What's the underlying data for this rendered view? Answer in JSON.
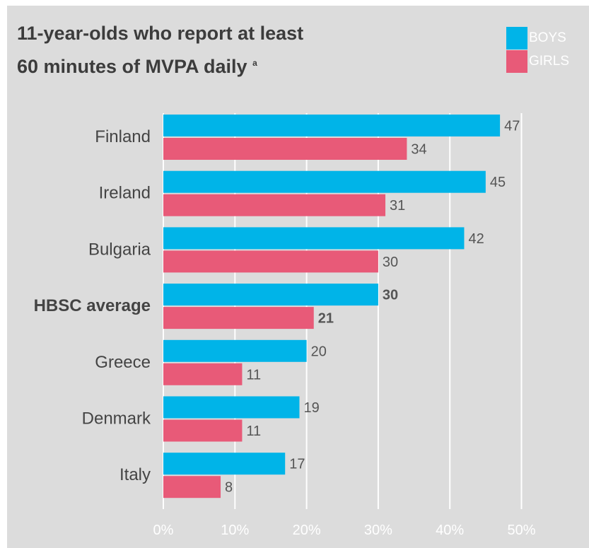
{
  "chart_data": {
    "type": "bar",
    "orientation": "horizontal",
    "title": "11-year-olds who report at least 60 minutes of MVPA daily",
    "title_lines": [
      "11-year-olds who report at least",
      "60 minutes of MVPA daily"
    ],
    "title_footnote": "a",
    "categories": [
      "Finland",
      "Ireland",
      "Bulgaria",
      "HBSC average",
      "Greece",
      "Denmark",
      "Italy"
    ],
    "highlight_category": "HBSC average",
    "series": [
      {
        "name": "BOYS",
        "color": "#00b4e8",
        "values": [
          47,
          45,
          42,
          30,
          20,
          19,
          17
        ]
      },
      {
        "name": "GIRLS",
        "color": "#e85a78",
        "values": [
          34,
          31,
          30,
          21,
          11,
          11,
          8
        ]
      }
    ],
    "xlim": [
      0,
      50
    ],
    "x_ticks": [
      0,
      10,
      20,
      30,
      40,
      50
    ],
    "x_tick_labels": [
      "0%",
      "10%",
      "20%",
      "30%",
      "40%",
      "50%"
    ],
    "grid": true,
    "legend_position": "top-right",
    "background": "#dcdcdc"
  }
}
